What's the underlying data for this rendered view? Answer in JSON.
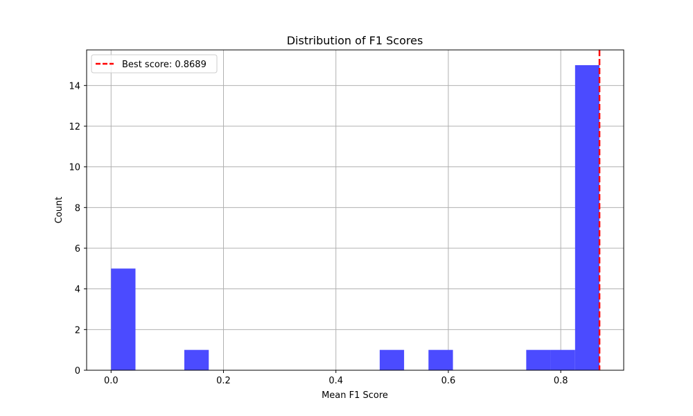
{
  "chart_data": {
    "type": "bar",
    "title": "Distribution of F1 Scores",
    "xlabel": "Mean F1 Score",
    "ylabel": "Count",
    "xlim": [
      -0.0435,
      0.912
    ],
    "ylim": [
      0,
      15.75
    ],
    "xticks": [
      0.0,
      0.2,
      0.4,
      0.6,
      0.8
    ],
    "xtick_labels": [
      "0.0",
      "0.2",
      "0.4",
      "0.6",
      "0.8"
    ],
    "yticks": [
      0,
      2,
      4,
      6,
      8,
      10,
      12,
      14
    ],
    "ytick_labels": [
      "0",
      "2",
      "4",
      "6",
      "8",
      "10",
      "12",
      "14"
    ],
    "grid": true,
    "bar_color": "#4b4bff",
    "bins": [
      {
        "start": 0.0,
        "end": 0.0434,
        "count": 5
      },
      {
        "start": 0.1303,
        "end": 0.1738,
        "count": 1
      },
      {
        "start": 0.4779,
        "end": 0.5213,
        "count": 1
      },
      {
        "start": 0.5647,
        "end": 0.6082,
        "count": 1
      },
      {
        "start": 0.7386,
        "end": 0.782,
        "count": 1
      },
      {
        "start": 0.782,
        "end": 0.8255,
        "count": 1
      },
      {
        "start": 0.8255,
        "end": 0.8689,
        "count": 15
      }
    ],
    "best_line": {
      "x": 0.8689,
      "color": "#ff0000",
      "label": "Best score: 0.8689"
    },
    "legend_position": "top-left"
  }
}
